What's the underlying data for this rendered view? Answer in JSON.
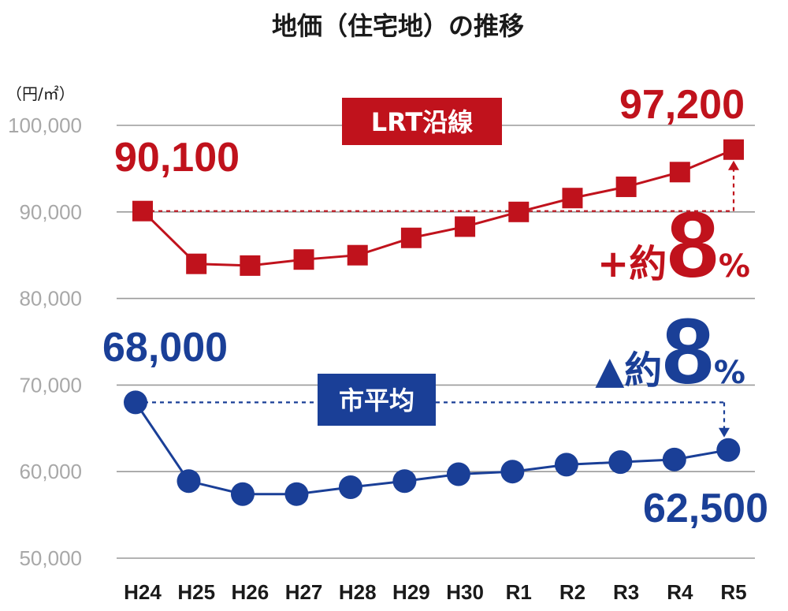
{
  "chart_data": {
    "type": "line",
    "title": "地価（住宅地）の推移",
    "unit": "（円/㎡）",
    "ylim": [
      50000,
      100000
    ],
    "yticks": [
      100000,
      90000,
      80000,
      70000,
      60000,
      50000
    ],
    "ytick_labels": [
      "100,000",
      "90,000",
      "80,000",
      "70,000",
      "60,000",
      "50,000"
    ],
    "categories": [
      "H24",
      "H25",
      "H26",
      "H27",
      "H28",
      "H29",
      "H30",
      "R1",
      "R2",
      "R3",
      "R4",
      "R5"
    ],
    "series": [
      {
        "name": "LRT沿線",
        "color": "#c0121c",
        "marker": "square",
        "values": [
          90100,
          84000,
          83800,
          84500,
          85000,
          87000,
          88300,
          90000,
          91600,
          92900,
          94600,
          97200
        ]
      },
      {
        "name": "市平均",
        "color": "#1a3f97",
        "marker": "circle",
        "values": [
          68000,
          58900,
          57400,
          57400,
          58200,
          58900,
          59700,
          60000,
          60800,
          61100,
          61400,
          62500
        ]
      }
    ],
    "annotations": {
      "lrt_start": "90,100",
      "lrt_end": "97,200",
      "city_start": "68,000",
      "city_end": "62,500",
      "lrt_change_prefix": "+約",
      "lrt_change_value": "8",
      "lrt_change_suffix": "%",
      "city_change_prefix": "▲約",
      "city_change_value": "8",
      "city_change_suffix": "%"
    }
  }
}
